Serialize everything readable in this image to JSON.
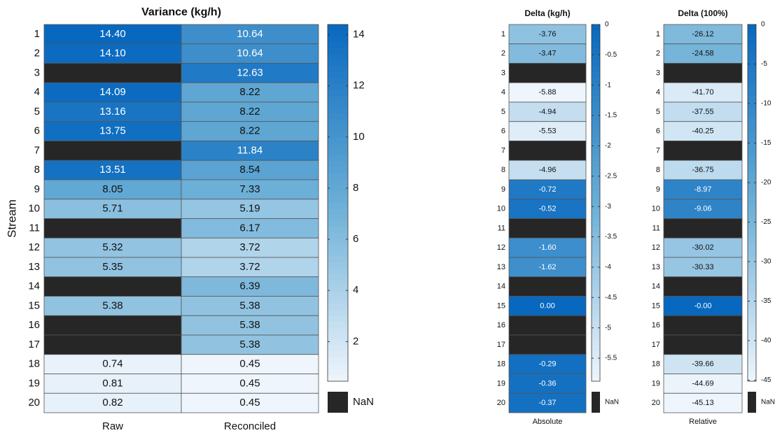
{
  "chart_data": [
    {
      "type": "heatmap",
      "title": "Variance (kg/h)",
      "ylabel": "Stream",
      "x": [
        "Raw",
        "Reconciled"
      ],
      "y": [
        "1",
        "2",
        "3",
        "4",
        "5",
        "6",
        "7",
        "8",
        "9",
        "10",
        "11",
        "12",
        "13",
        "14",
        "15",
        "16",
        "17",
        "18",
        "19",
        "20"
      ],
      "values": [
        [
          14.4,
          10.64
        ],
        [
          14.1,
          10.64
        ],
        [
          null,
          12.63
        ],
        [
          14.09,
          8.22
        ],
        [
          13.16,
          8.22
        ],
        [
          13.75,
          8.22
        ],
        [
          null,
          11.84
        ],
        [
          13.51,
          8.54
        ],
        [
          8.05,
          7.33
        ],
        [
          5.71,
          5.19
        ],
        [
          null,
          6.17
        ],
        [
          5.32,
          3.72
        ],
        [
          5.35,
          3.72
        ],
        [
          null,
          6.39
        ],
        [
          5.38,
          5.38
        ],
        [
          null,
          5.38
        ],
        [
          null,
          5.38
        ],
        [
          0.74,
          0.45
        ],
        [
          0.81,
          0.45
        ],
        [
          0.82,
          0.45
        ]
      ],
      "value_labels": [
        [
          "14.40",
          "10.64"
        ],
        [
          "14.10",
          "10.64"
        ],
        [
          null,
          "12.63"
        ],
        [
          "14.09",
          "8.22"
        ],
        [
          "13.16",
          "8.22"
        ],
        [
          "13.75",
          "8.22"
        ],
        [
          null,
          "11.84"
        ],
        [
          "13.51",
          "8.54"
        ],
        [
          "8.05",
          "7.33"
        ],
        [
          "5.71",
          "5.19"
        ],
        [
          null,
          "6.17"
        ],
        [
          "5.32",
          "3.72"
        ],
        [
          "5.35",
          "3.72"
        ],
        [
          null,
          "6.39"
        ],
        [
          "5.38",
          "5.38"
        ],
        [
          null,
          "5.38"
        ],
        [
          null,
          "5.38"
        ],
        [
          "0.74",
          "0.45"
        ],
        [
          "0.81",
          "0.45"
        ],
        [
          "0.82",
          "0.45"
        ]
      ],
      "zlim": [
        0.45,
        14.4
      ],
      "zticks": [
        2,
        4,
        6,
        8,
        10,
        12,
        14
      ],
      "colormap": [
        "#eef5fc",
        "#6aaed6",
        "#0868bf"
      ],
      "nan_color": "#262626",
      "nan_label": "NaN"
    },
    {
      "type": "heatmap",
      "title": "Delta (kg/h)",
      "x": [
        "Absolute"
      ],
      "y": [
        "1",
        "2",
        "3",
        "4",
        "5",
        "6",
        "7",
        "8",
        "9",
        "10",
        "11",
        "12",
        "13",
        "14",
        "15",
        "16",
        "17",
        "18",
        "19",
        "20"
      ],
      "values": [
        [
          -3.76
        ],
        [
          -3.47
        ],
        [
          null
        ],
        [
          -5.88
        ],
        [
          -4.94
        ],
        [
          -5.53
        ],
        [
          null
        ],
        [
          -4.96
        ],
        [
          -0.72
        ],
        [
          -0.52
        ],
        [
          null
        ],
        [
          -1.6
        ],
        [
          -1.62
        ],
        [
          null
        ],
        [
          0
        ],
        [
          null
        ],
        [
          null
        ],
        [
          -0.29
        ],
        [
          -0.36
        ],
        [
          -0.37
        ]
      ],
      "value_labels": [
        [
          "-3.76"
        ],
        [
          "-3.47"
        ],
        [
          null
        ],
        [
          "-5.88"
        ],
        [
          "-4.94"
        ],
        [
          "-5.53"
        ],
        [
          null
        ],
        [
          "-4.96"
        ],
        [
          "-0.72"
        ],
        [
          "-0.52"
        ],
        [
          null
        ],
        [
          "-1.60"
        ],
        [
          "-1.62"
        ],
        [
          null
        ],
        [
          "0.00"
        ],
        [
          null
        ],
        [
          null
        ],
        [
          "-0.29"
        ],
        [
          "-0.36"
        ],
        [
          "-0.37"
        ]
      ],
      "zlim": [
        -5.88,
        0
      ],
      "zticks": [
        0,
        -0.5,
        -1,
        -1.5,
        -2,
        -2.5,
        -3,
        -3.5,
        -4,
        -4.5,
        -5,
        -5.5
      ],
      "colormap": [
        "#eef5fc",
        "#6aaed6",
        "#0868bf"
      ],
      "nan_color": "#262626",
      "nan_label": "NaN"
    },
    {
      "type": "heatmap",
      "title": "Delta (100%)",
      "x": [
        "Relative"
      ],
      "y": [
        "1",
        "2",
        "3",
        "4",
        "5",
        "6",
        "7",
        "8",
        "9",
        "10",
        "11",
        "12",
        "13",
        "14",
        "15",
        "16",
        "17",
        "18",
        "19",
        "20"
      ],
      "values": [
        [
          -26.12
        ],
        [
          -24.58
        ],
        [
          null
        ],
        [
          -41.7
        ],
        [
          -37.55
        ],
        [
          -40.25
        ],
        [
          null
        ],
        [
          -36.75
        ],
        [
          -8.97
        ],
        [
          -9.06
        ],
        [
          null
        ],
        [
          -30.02
        ],
        [
          -30.33
        ],
        [
          null
        ],
        [
          0
        ],
        [
          null
        ],
        [
          null
        ],
        [
          -39.66
        ],
        [
          -44.69
        ],
        [
          -45.13
        ]
      ],
      "value_labels": [
        [
          "-26.12"
        ],
        [
          "-24.58"
        ],
        [
          null
        ],
        [
          "-41.70"
        ],
        [
          "-37.55"
        ],
        [
          "-40.25"
        ],
        [
          null
        ],
        [
          "-36.75"
        ],
        [
          "-8.97"
        ],
        [
          "-9.06"
        ],
        [
          null
        ],
        [
          "-30.02"
        ],
        [
          "-30.33"
        ],
        [
          null
        ],
        [
          "-0.00"
        ],
        [
          null
        ],
        [
          null
        ],
        [
          "-39.66"
        ],
        [
          "-44.69"
        ],
        [
          "-45.13"
        ]
      ],
      "zlim": [
        -45.13,
        0
      ],
      "zticks": [
        0,
        -5,
        -10,
        -15,
        -20,
        -25,
        -30,
        -35,
        -40,
        -45
      ],
      "colormap": [
        "#eef5fc",
        "#6aaed6",
        "#0868bf"
      ],
      "nan_color": "#262626",
      "nan_label": "NaN"
    }
  ]
}
